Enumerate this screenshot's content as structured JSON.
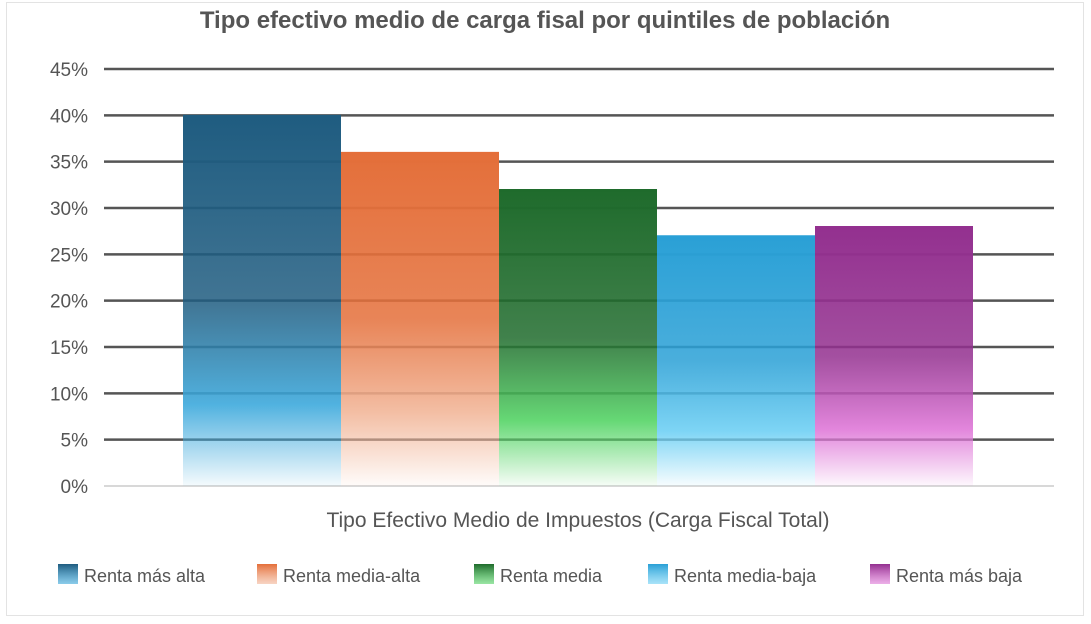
{
  "chart_data": {
    "type": "bar",
    "title": "Tipo efectivo medio de carga fisal por quintiles de población",
    "categories": [
      "Tipo Efectivo Medio de Impuestos (Carga Fiscal Total)"
    ],
    "series": [
      {
        "name": "Renta más alta",
        "values": [
          40
        ],
        "color": "#1f5c80",
        "fade_color": "#3da9dc"
      },
      {
        "name": "Renta media-alta",
        "values": [
          36
        ],
        "color": "#e46f3a",
        "fade_color": "#f2b79a"
      },
      {
        "name": "Renta media",
        "values": [
          32
        ],
        "color": "#1f6b2c",
        "fade_color": "#55d466"
      },
      {
        "name": "Renta media-baja",
        "values": [
          27
        ],
        "color": "#2aa0d6",
        "fade_color": "#6fd0f4"
      },
      {
        "name": "Renta más baja",
        "values": [
          28
        ],
        "color": "#93308f",
        "fade_color": "#df78d8"
      }
    ],
    "ylim": [
      0,
      45
    ],
    "y_ticks": [
      0,
      5,
      10,
      15,
      20,
      25,
      30,
      35,
      40,
      45
    ],
    "y_tick_format": "%",
    "grid": true,
    "legend_position": "bottom"
  }
}
